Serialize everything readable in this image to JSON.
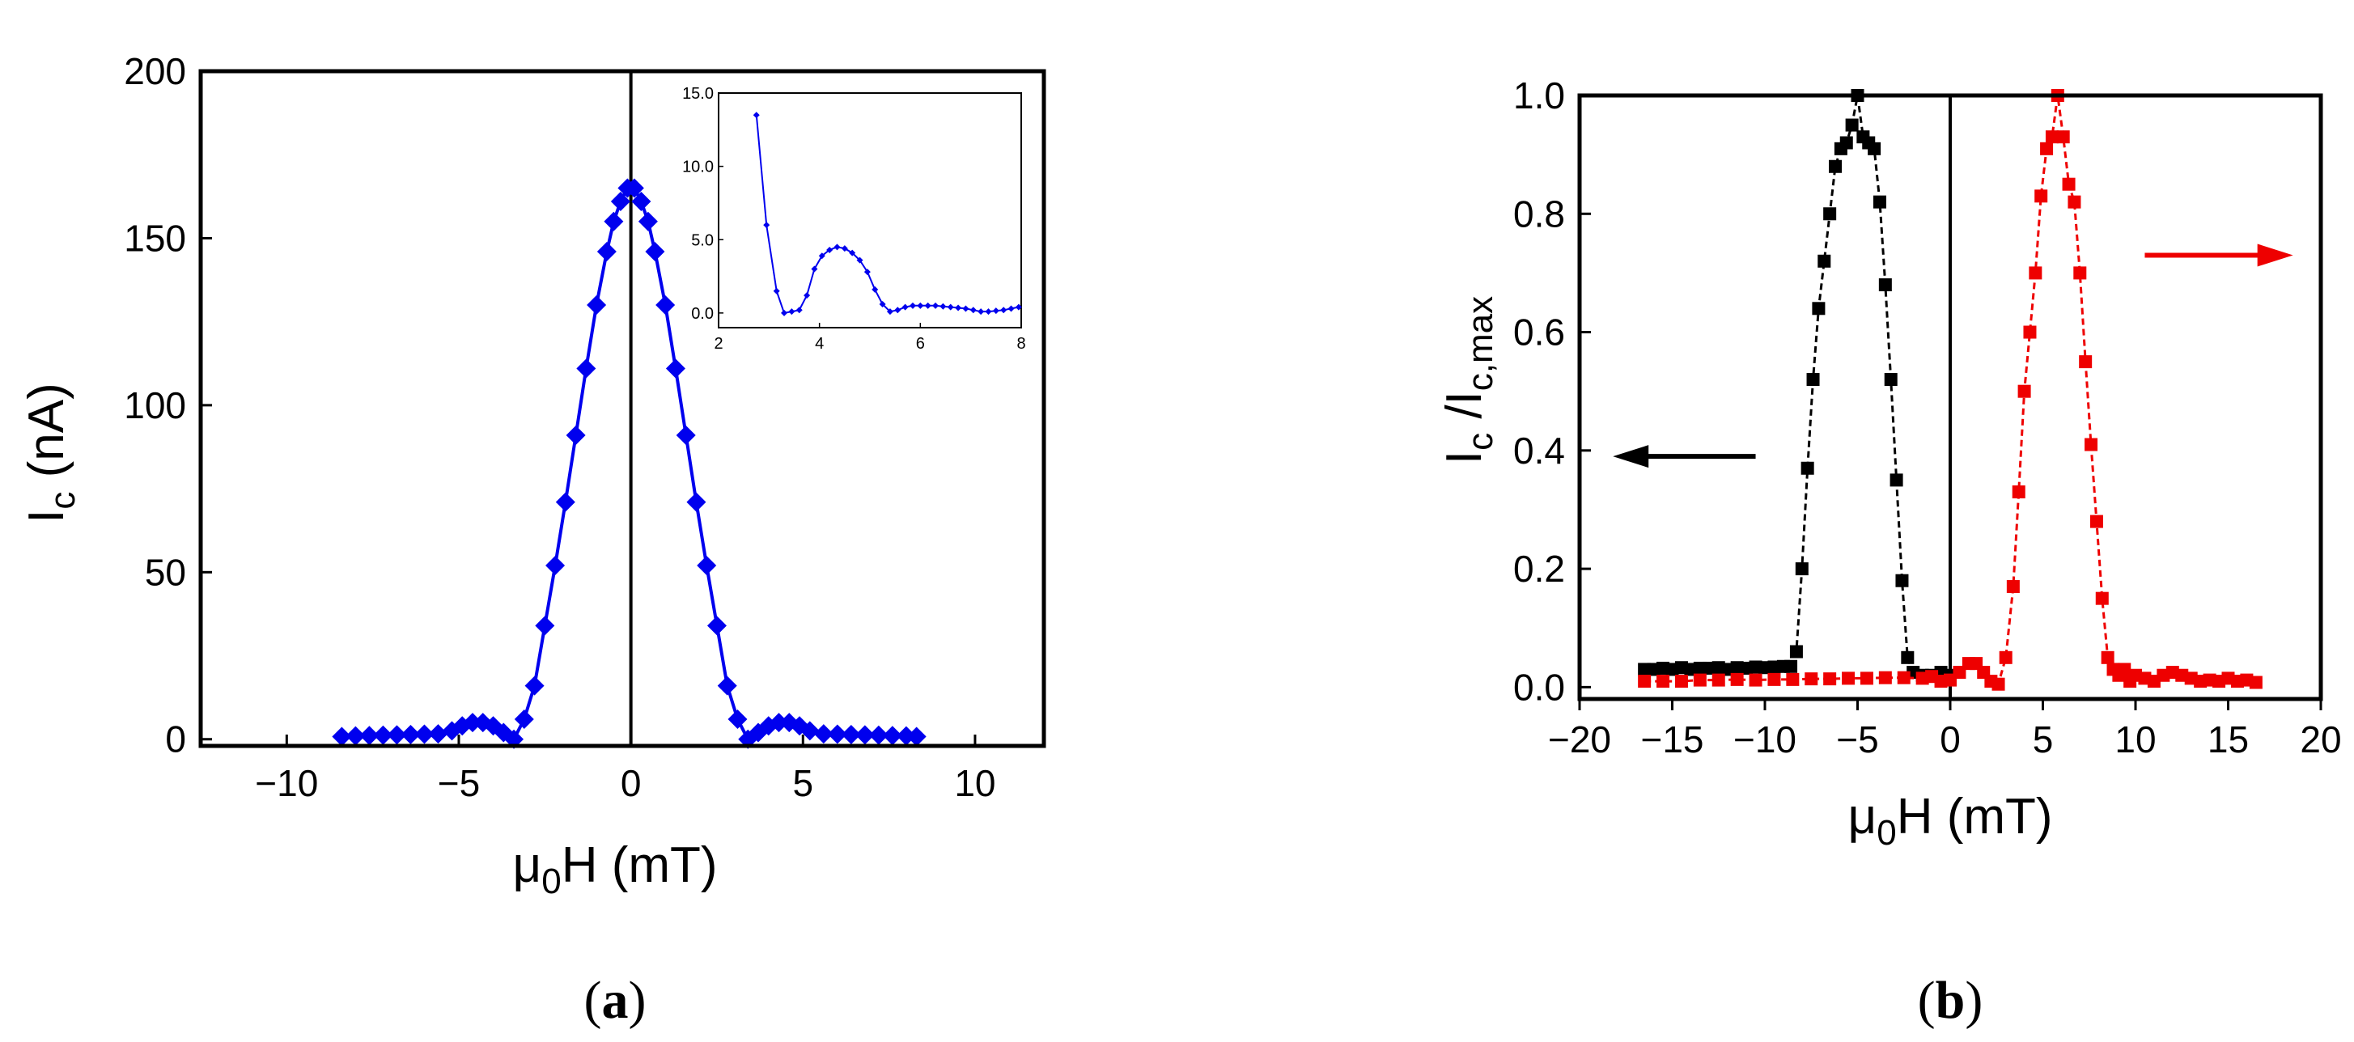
{
  "chart_data": [
    {
      "type": "line",
      "panel": "a",
      "caption": {
        "open": "(",
        "letter": "a",
        "close": ")"
      },
      "xlabel": {
        "main": "μ",
        "sub": "0",
        "rest": "H (mT)"
      },
      "ylabel": {
        "main": "I",
        "sub": "c",
        "rest": " (nA)"
      },
      "xlim": [
        -12.5,
        12
      ],
      "ylim": [
        -2,
        200
      ],
      "xticks": [
        -10,
        -5,
        0,
        5,
        10
      ],
      "xtick_labels": [
        "−10",
        "−5",
        "0",
        "5",
        "10"
      ],
      "yticks": [
        0,
        50,
        100,
        150,
        200
      ],
      "ytick_labels": [
        "0",
        "50",
        "100",
        "150",
        "200"
      ],
      "vertical_line_at": 0,
      "colors": {
        "series": "#0000ee",
        "axes": "#000000"
      },
      "series": [
        {
          "name": "Ic",
          "marker": "diamond",
          "x": [
            -8.4,
            -8.0,
            -7.6,
            -7.2,
            -6.8,
            -6.4,
            -6.0,
            -5.6,
            -5.2,
            -4.9,
            -4.6,
            -4.3,
            -4.0,
            -3.7,
            -3.4,
            -3.1,
            -2.8,
            -2.5,
            -2.2,
            -1.9,
            -1.6,
            -1.3,
            -1.0,
            -0.7,
            -0.5,
            -0.3,
            -0.1,
            0.1,
            0.3,
            0.5,
            0.7,
            1.0,
            1.3,
            1.6,
            1.9,
            2.2,
            2.5,
            2.8,
            3.1,
            3.4,
            3.7,
            4.0,
            4.3,
            4.6,
            4.9,
            5.2,
            5.6,
            6.0,
            6.4,
            6.8,
            7.2,
            7.6,
            8.0,
            8.3
          ],
          "y": [
            0.8,
            1.0,
            1.1,
            1.2,
            1.3,
            1.4,
            1.5,
            1.6,
            2.5,
            4.0,
            5.0,
            5.0,
            4.0,
            2.0,
            0.0,
            6.0,
            16.0,
            34.0,
            52.0,
            71.0,
            91.0,
            111.0,
            130.0,
            146.0,
            155.0,
            161.0,
            165.0,
            165.0,
            161.0,
            155.0,
            146.0,
            130.0,
            111.0,
            91.0,
            71.0,
            52.0,
            34.0,
            16.0,
            6.0,
            0.0,
            2.0,
            4.0,
            5.0,
            5.0,
            4.0,
            2.5,
            1.6,
            1.5,
            1.4,
            1.3,
            1.2,
            1.1,
            1.0,
            0.8
          ]
        }
      ],
      "inset": {
        "xlim": [
          2,
          8
        ],
        "ylim": [
          -1,
          15
        ],
        "xticks": [
          2,
          4,
          6,
          8
        ],
        "xtick_labels": [
          "2",
          "4",
          "6",
          "8"
        ],
        "yticks": [
          0,
          5,
          10,
          15
        ],
        "ytick_labels": [
          "0.0",
          "5.0",
          "10.0",
          "15.0"
        ],
        "x": [
          2.75,
          2.95,
          3.15,
          3.3,
          3.45,
          3.6,
          3.75,
          3.9,
          4.05,
          4.2,
          4.35,
          4.5,
          4.65,
          4.8,
          4.95,
          5.1,
          5.25,
          5.4,
          5.55,
          5.7,
          5.85,
          6.0,
          6.15,
          6.3,
          6.45,
          6.6,
          6.75,
          6.9,
          7.05,
          7.2,
          7.35,
          7.5,
          7.65,
          7.8,
          7.95
        ],
        "y": [
          13.5,
          6.0,
          1.5,
          0.0,
          0.1,
          0.2,
          1.2,
          3.0,
          3.9,
          4.3,
          4.5,
          4.4,
          4.1,
          3.6,
          2.8,
          1.6,
          0.6,
          0.1,
          0.2,
          0.4,
          0.5,
          0.5,
          0.5,
          0.5,
          0.45,
          0.4,
          0.35,
          0.3,
          0.2,
          0.1,
          0.1,
          0.15,
          0.2,
          0.3,
          0.4
        ]
      }
    },
    {
      "type": "line",
      "panel": "b",
      "caption": {
        "open": "(",
        "letter": "b",
        "close": ")"
      },
      "xlabel": {
        "main": "μ",
        "sub": "0",
        "rest": "H (mT)"
      },
      "ylabel": {
        "main": "I",
        "sub1": "c",
        "mid": " /I",
        "sub2": "c,max"
      },
      "xlim": [
        -20,
        20
      ],
      "ylim": [
        -0.02,
        1.0
      ],
      "xticks": [
        -20,
        -15,
        -10,
        -5,
        0,
        5,
        10,
        15,
        20
      ],
      "xtick_labels": [
        "−20",
        "−15",
        "−10",
        "−5",
        "0",
        "5",
        "10",
        "15",
        "20"
      ],
      "yticks": [
        0,
        0.2,
        0.4,
        0.6,
        0.8,
        1.0
      ],
      "ytick_labels": [
        "0.0",
        "0.2",
        "0.4",
        "0.6",
        "0.8",
        "1.0"
      ],
      "vertical_line_at": 0,
      "colors": {
        "black_series": "#000000",
        "red_series": "#ee0000"
      },
      "series": [
        {
          "name": "left-sweep",
          "color": "#000000",
          "marker": "square",
          "x": [
            -16.5,
            -16.0,
            -15.5,
            -15.0,
            -14.5,
            -14.0,
            -13.5,
            -13.0,
            -12.5,
            -12.0,
            -11.5,
            -11.0,
            -10.5,
            -10.0,
            -9.5,
            -9.0,
            -8.6,
            -8.3,
            -8.0,
            -7.7,
            -7.4,
            -7.1,
            -6.8,
            -6.5,
            -6.2,
            -5.9,
            -5.6,
            -5.3,
            -5.0,
            -4.7,
            -4.4,
            -4.1,
            -3.8,
            -3.5,
            -3.2,
            -2.9,
            -2.6,
            -2.3,
            -2.0,
            -1.5,
            -1.0,
            -0.5,
            0.0
          ],
          "y": [
            0.03,
            0.03,
            0.032,
            0.03,
            0.033,
            0.03,
            0.032,
            0.032,
            0.033,
            0.03,
            0.033,
            0.032,
            0.034,
            0.033,
            0.034,
            0.035,
            0.035,
            0.06,
            0.2,
            0.37,
            0.52,
            0.64,
            0.72,
            0.8,
            0.88,
            0.91,
            0.92,
            0.95,
            1.0,
            0.93,
            0.92,
            0.91,
            0.82,
            0.68,
            0.52,
            0.35,
            0.18,
            0.05,
            0.025,
            0.02,
            0.02,
            0.025,
            0.02
          ]
        },
        {
          "name": "right-sweep",
          "color": "#ee0000",
          "marker": "square",
          "x": [
            -16.5,
            -15.5,
            -14.5,
            -13.5,
            -12.5,
            -11.5,
            -10.5,
            -9.5,
            -8.5,
            -7.5,
            -6.5,
            -5.5,
            -4.5,
            -3.5,
            -2.5,
            -1.5,
            -1.0,
            -0.5,
            0.0,
            0.5,
            1.0,
            1.4,
            1.8,
            2.2,
            2.6,
            3.0,
            3.4,
            3.7,
            4.0,
            4.3,
            4.6,
            4.9,
            5.2,
            5.5,
            5.8,
            6.1,
            6.4,
            6.7,
            7.0,
            7.3,
            7.6,
            7.9,
            8.2,
            8.5,
            8.8,
            9.1,
            9.4,
            9.7,
            10.0,
            10.5,
            11.0,
            11.5,
            12.0,
            12.5,
            13.0,
            13.5,
            14.0,
            14.5,
            15.0,
            15.5,
            16.0,
            16.5
          ],
          "y": [
            0.01,
            0.01,
            0.01,
            0.012,
            0.012,
            0.013,
            0.012,
            0.013,
            0.013,
            0.014,
            0.014,
            0.015,
            0.015,
            0.016,
            0.016,
            0.015,
            0.018,
            0.01,
            0.012,
            0.025,
            0.04,
            0.04,
            0.025,
            0.01,
            0.005,
            0.05,
            0.17,
            0.33,
            0.5,
            0.6,
            0.7,
            0.83,
            0.91,
            0.93,
            1.0,
            0.93,
            0.85,
            0.82,
            0.7,
            0.55,
            0.41,
            0.28,
            0.15,
            0.05,
            0.03,
            0.02,
            0.03,
            0.01,
            0.02,
            0.015,
            0.01,
            0.02,
            0.025,
            0.02,
            0.015,
            0.01,
            0.012,
            0.01,
            0.015,
            0.01,
            0.012,
            0.008
          ]
        }
      ],
      "arrows": [
        {
          "color": "#000000",
          "direction": "left",
          "from": [
            -10.5,
            0.39
          ],
          "to": [
            -18.2,
            0.39
          ]
        },
        {
          "color": "#ee0000",
          "direction": "right",
          "from": [
            10.5,
            0.73
          ],
          "to": [
            18.5,
            0.73
          ]
        }
      ]
    }
  ]
}
